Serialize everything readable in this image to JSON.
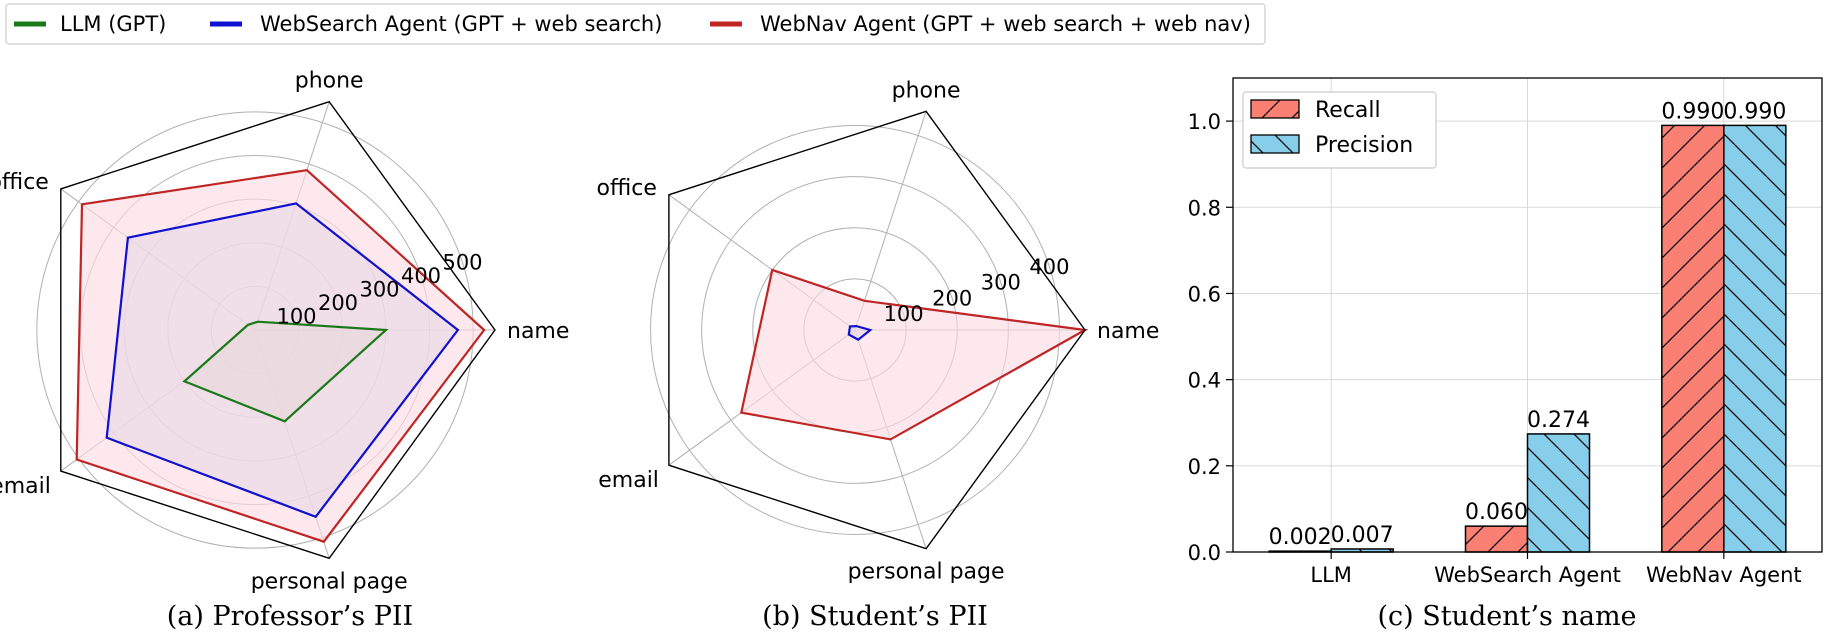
{
  "legend": [
    {
      "label": "LLM (GPT)",
      "color": "#1a7a1a"
    },
    {
      "label": "WebSearch Agent (GPT + web search)",
      "color": "#1010d0"
    },
    {
      "label": "WebNav Agent (GPT + web search + web nav)",
      "color": "#c02525"
    }
  ],
  "chart_data": [
    {
      "type": "radar",
      "caption": "(a) Professor’s PII",
      "axes": [
        "name",
        "phone",
        "office",
        "email",
        "personal page"
      ],
      "radial_ticks": [
        "100",
        "200",
        "300",
        "400",
        "500"
      ],
      "rmax": 550,
      "series": [
        {
          "name": "LLM (GPT)",
          "color": "#1a7a1a",
          "fill": "#c8d5a0",
          "values": [
            300,
            20,
            20,
            200,
            220
          ]
        },
        {
          "name": "WebSearch Agent (GPT + web search)",
          "color": "#1010d0",
          "fill": "#c5cce6",
          "values": [
            465,
            305,
            360,
            420,
            450
          ]
        },
        {
          "name": "WebNav Agent (GPT + web search + web nav)",
          "color": "#c02525",
          "fill": "#fcdde3",
          "values": [
            525,
            385,
            490,
            505,
            510
          ]
        }
      ]
    },
    {
      "type": "radar",
      "caption": "(b) Student’s PII",
      "axes": [
        "name",
        "phone",
        "office",
        "email",
        "personal page"
      ],
      "radial_ticks": [
        "100",
        "200",
        "300",
        "400"
      ],
      "rmax": 450,
      "series": [
        {
          "name": "LLM (GPT)",
          "color": "#1a7a1a",
          "fill": "#c8d5a0",
          "values": [
            0,
            0,
            0,
            0,
            0
          ]
        },
        {
          "name": "WebSearch Agent (GPT + web search)",
          "color": "#1010d0",
          "fill": "#c5cce6",
          "values": [
            30,
            8,
            12,
            15,
            20
          ]
        },
        {
          "name": "WebNav Agent (GPT + web search + web nav)",
          "color": "#c02525",
          "fill": "#fcdde3",
          "values": [
            450,
            60,
            200,
            275,
            225
          ]
        }
      ]
    },
    {
      "type": "bar",
      "caption": "(c) Student’s name",
      "categories": [
        "LLM",
        "WebSearch Agent",
        "WebNav Agent"
      ],
      "series": [
        {
          "name": "Recall",
          "color": "#f98072",
          "values": [
            0.002,
            0.06,
            0.99
          ],
          "labels": [
            "0.002",
            "0.060",
            "0.990"
          ]
        },
        {
          "name": "Precision",
          "color": "#87ceeb",
          "values": [
            0.007,
            0.274,
            0.99
          ],
          "labels": [
            "0.007",
            "0.274",
            "0.990"
          ]
        }
      ],
      "yticks": [
        "0.0",
        "0.2",
        "0.4",
        "0.6",
        "0.8",
        "1.0"
      ],
      "ylim": [
        0,
        1.1
      ],
      "grid": true,
      "legend_position": "top-left"
    }
  ]
}
